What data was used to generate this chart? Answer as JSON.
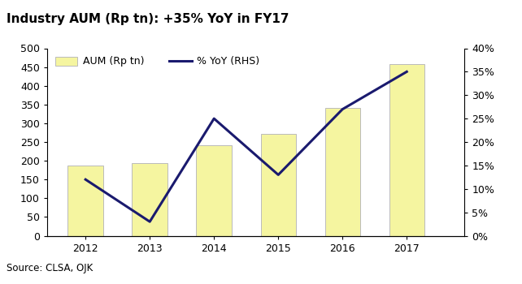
{
  "title": "Industry AUM (Rp tn): +35% YoY in FY17",
  "title_bg_color": "#FFE800",
  "years": [
    2012,
    2013,
    2014,
    2015,
    2016,
    2017
  ],
  "aum_values": [
    188,
    193,
    242,
    272,
    340,
    458
  ],
  "yoy_values": [
    12,
    3,
    25,
    13,
    27,
    35
  ],
  "bar_color": "#F5F5A0",
  "bar_edge_color": "#BBBBBB",
  "line_color": "#1a1a6e",
  "line_width": 2.2,
  "left_ylim": [
    0,
    500
  ],
  "left_yticks": [
    0,
    50,
    100,
    150,
    200,
    250,
    300,
    350,
    400,
    450,
    500
  ],
  "right_ylim": [
    0,
    40
  ],
  "right_yticks": [
    0,
    5,
    10,
    15,
    20,
    25,
    30,
    35,
    40
  ],
  "right_yticklabels": [
    "0%",
    "5%",
    "10%",
    "15%",
    "20%",
    "25%",
    "30%",
    "35%",
    "40%"
  ],
  "legend_bar_label": "AUM (Rp tn)",
  "legend_line_label": "% YoY (RHS)",
  "source_text": "Source: CLSA, OJK",
  "bg_color": "#FFFFFF",
  "separator_color": "#1a1a6e",
  "bottom_line_color": "#FFE800",
  "font_size": 9,
  "title_font_size": 11
}
